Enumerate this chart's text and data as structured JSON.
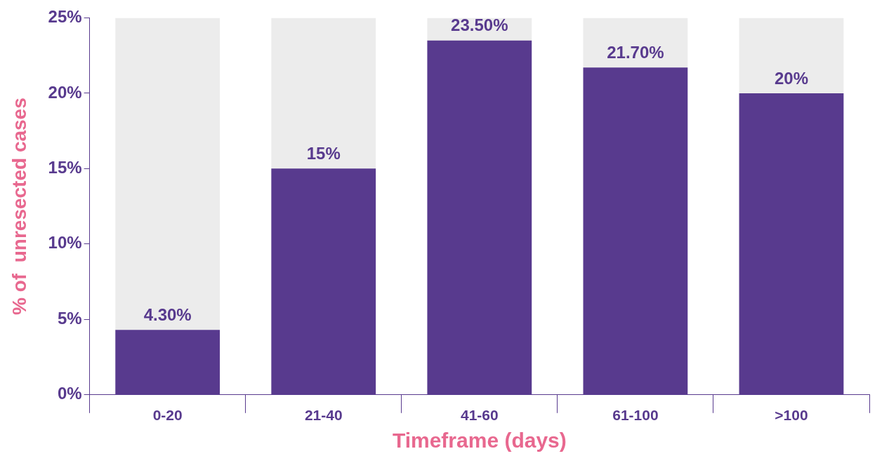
{
  "chart_data": {
    "type": "bar",
    "xlabel": "Timeframe (days)",
    "ylabel": "% of  unresected cases",
    "categories": [
      "0-20",
      "21-40",
      "41-60",
      "61-100",
      ">100"
    ],
    "stacked": true,
    "series": [
      {
        "color": "#583a8e",
        "values": [
          4.3,
          15,
          23.5,
          21.7,
          20
        ],
        "value_labels": [
          "4.30%",
          "15%",
          "23.50%",
          "21.70%",
          "20%"
        ]
      },
      {
        "color": "#ececec",
        "values": [
          20.7,
          10,
          1.5,
          3.3,
          5
        ]
      }
    ],
    "ylim": [
      0,
      25
    ],
    "yticks": [
      {
        "value": 0,
        "label": "0%"
      },
      {
        "value": 5,
        "label": "5%"
      },
      {
        "value": 10,
        "label": "10%"
      },
      {
        "value": 15,
        "label": "15%"
      },
      {
        "value": 20,
        "label": "20%"
      },
      {
        "value": 25,
        "label": "25%"
      }
    ],
    "grid": false,
    "legend": false
  }
}
